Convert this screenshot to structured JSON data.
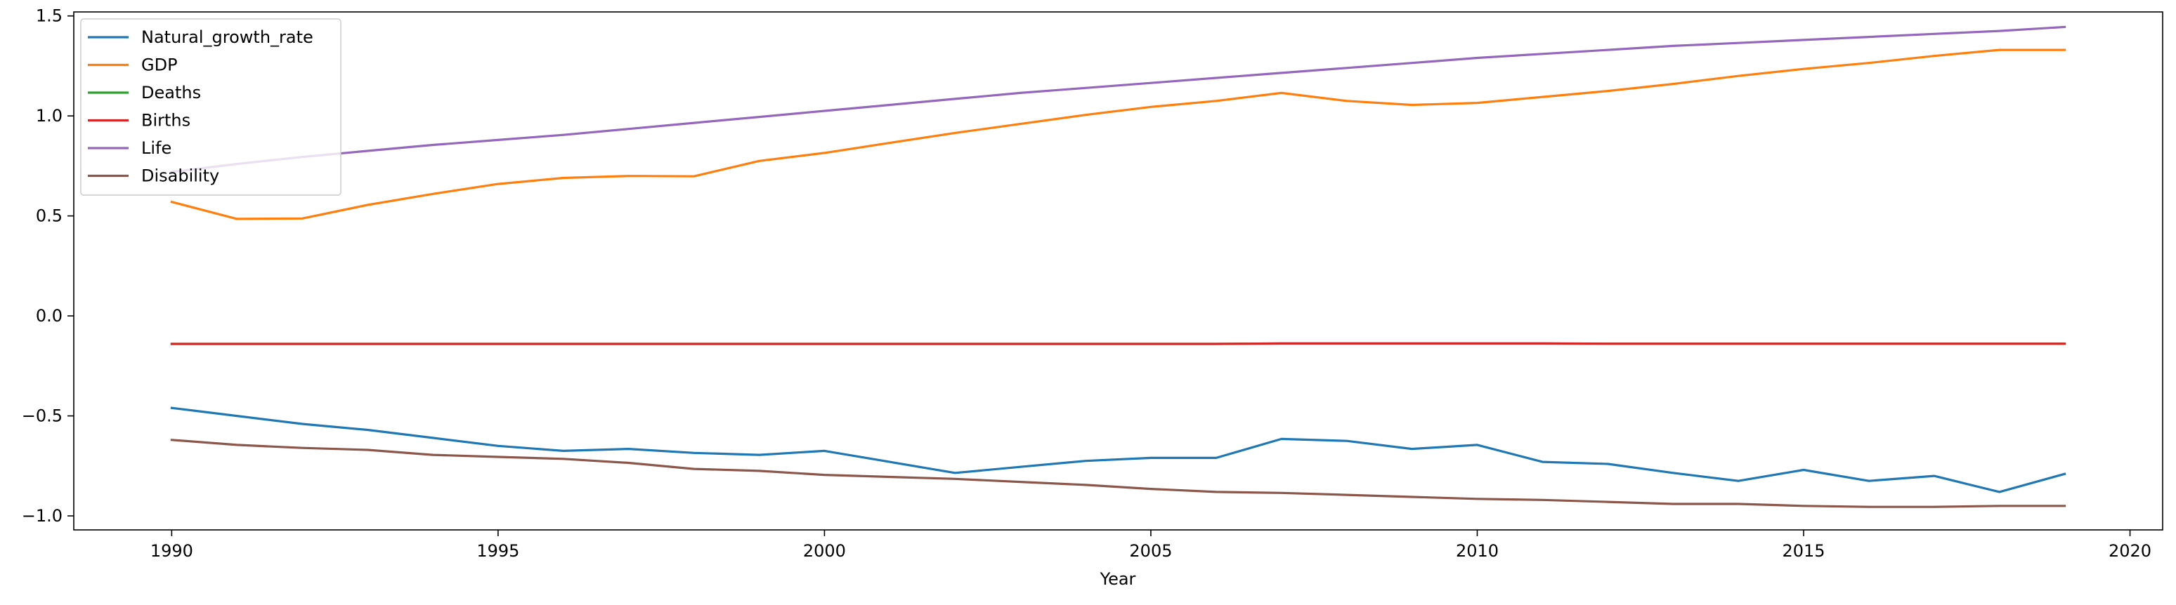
{
  "chart_data": {
    "type": "line",
    "title": "",
    "xlabel": "Year",
    "ylabel": "",
    "xlim": [
      1988.5,
      2020.5
    ],
    "ylim": [
      -1.07,
      1.52
    ],
    "grid": false,
    "legend_position": "top-left",
    "x_ticks": [
      1990,
      1995,
      2000,
      2005,
      2010,
      2015,
      2020
    ],
    "x_tick_labels": [
      "1990",
      "1995",
      "2000",
      "2005",
      "2010",
      "2015",
      "2020"
    ],
    "y_ticks": [
      -1.0,
      -0.5,
      0.0,
      0.5,
      1.0,
      1.5
    ],
    "y_tick_labels": [
      "−1.0",
      "−0.5",
      "0.0",
      "0.5",
      "1.0",
      "1.5"
    ],
    "x": [
      1990,
      1991,
      1992,
      1993,
      1994,
      1995,
      1996,
      1997,
      1998,
      1999,
      2000,
      2001,
      2002,
      2003,
      2004,
      2005,
      2006,
      2007,
      2008,
      2009,
      2010,
      2011,
      2012,
      2013,
      2014,
      2015,
      2016,
      2017,
      2018,
      2019
    ],
    "series": [
      {
        "name": "Natural_growth_rate",
        "color": "#1f77b4",
        "values": [
          -0.46,
          -0.5,
          -0.54,
          -0.57,
          -0.61,
          -0.65,
          -0.675,
          -0.665,
          -0.685,
          -0.695,
          -0.675,
          -0.73,
          -0.785,
          -0.755,
          -0.725,
          -0.71,
          -0.71,
          -0.615,
          -0.625,
          -0.665,
          -0.645,
          -0.73,
          -0.74,
          -0.785,
          -0.825,
          -0.77,
          -0.825,
          -0.8,
          -0.88,
          -0.79
        ]
      },
      {
        "name": "GDP",
        "color": "#ff7f0e",
        "values": [
          0.57,
          0.485,
          0.487,
          0.555,
          0.61,
          0.66,
          0.69,
          0.7,
          0.698,
          0.775,
          0.815,
          0.865,
          0.915,
          0.96,
          1.005,
          1.045,
          1.075,
          1.115,
          1.075,
          1.055,
          1.065,
          1.095,
          1.125,
          1.16,
          1.2,
          1.235,
          1.265,
          1.3,
          1.33,
          1.33
        ]
      },
      {
        "name": "Deaths",
        "color": "#2ca02c",
        "values": [
          -0.14,
          -0.14,
          -0.14,
          -0.14,
          -0.14,
          -0.14,
          -0.14,
          -0.14,
          -0.14,
          -0.14,
          -0.14,
          -0.14,
          -0.14,
          -0.14,
          -0.14,
          -0.14,
          -0.14,
          -0.138,
          -0.138,
          -0.138,
          -0.138,
          -0.138,
          -0.139,
          -0.139,
          -0.139,
          -0.139,
          -0.139,
          -0.139,
          -0.139,
          -0.139
        ]
      },
      {
        "name": "Births",
        "color": "#d62728",
        "values": [
          -0.14,
          -0.14,
          -0.14,
          -0.14,
          -0.14,
          -0.14,
          -0.14,
          -0.14,
          -0.14,
          -0.14,
          -0.14,
          -0.14,
          -0.14,
          -0.14,
          -0.14,
          -0.14,
          -0.14,
          -0.138,
          -0.138,
          -0.138,
          -0.138,
          -0.138,
          -0.139,
          -0.139,
          -0.139,
          -0.139,
          -0.139,
          -0.139,
          -0.139,
          -0.139
        ]
      },
      {
        "name": "Life",
        "color": "#9467bd",
        "values": [
          0.72,
          0.76,
          0.795,
          0.825,
          0.855,
          0.88,
          0.905,
          0.935,
          0.965,
          0.995,
          1.025,
          1.055,
          1.085,
          1.115,
          1.14,
          1.165,
          1.19,
          1.215,
          1.24,
          1.265,
          1.29,
          1.31,
          1.33,
          1.35,
          1.365,
          1.38,
          1.395,
          1.41,
          1.425,
          1.445
        ]
      },
      {
        "name": "Disability",
        "color": "#8c564b",
        "values": [
          -0.62,
          -0.645,
          -0.66,
          -0.67,
          -0.695,
          -0.705,
          -0.715,
          -0.735,
          -0.765,
          -0.775,
          -0.795,
          -0.805,
          -0.815,
          -0.83,
          -0.845,
          -0.865,
          -0.88,
          -0.885,
          -0.895,
          -0.905,
          -0.915,
          -0.92,
          -0.93,
          -0.94,
          -0.94,
          -0.95,
          -0.955,
          -0.955,
          -0.95,
          -0.95
        ]
      }
    ]
  }
}
